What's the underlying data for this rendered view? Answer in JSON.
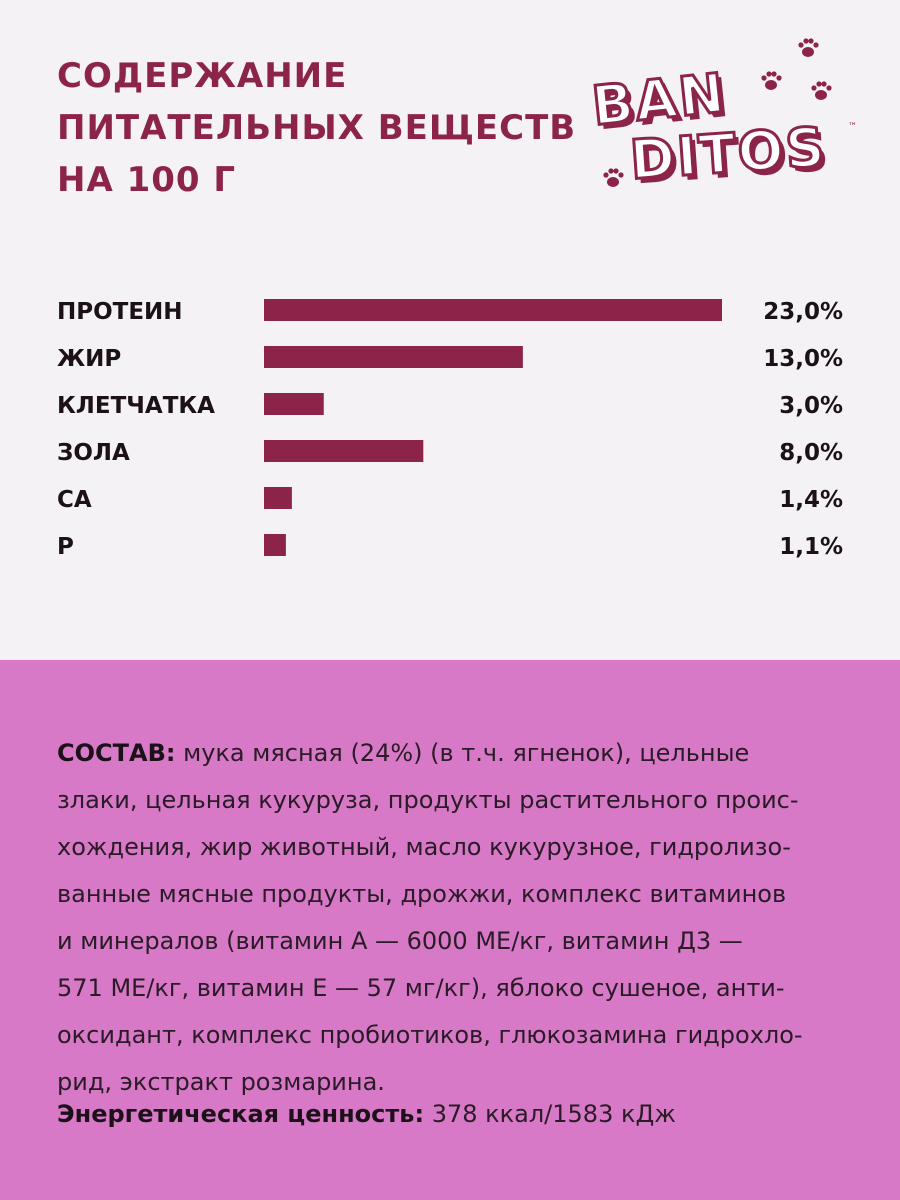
{
  "header": {
    "title_lines": [
      "СОДЕРЖАНИЕ",
      "ПИТАТЕЛЬНЫХ ВЕЩЕСТВ",
      "НА 100 Г"
    ]
  },
  "logo": {
    "line1": "BAN",
    "line2": "DITOS",
    "tm": "™",
    "paw_icon": "paw-icon"
  },
  "colors": {
    "accent": "#8c2449",
    "top_background": "#f4f2f5",
    "bottom_background": "#d779c6",
    "text_dark": "#1d1119"
  },
  "chart_data": {
    "type": "bar",
    "orientation": "horizontal",
    "categories": [
      "ПРОТЕИН",
      "ЖИР",
      "КЛЕТЧАТКА",
      "ЗОЛА",
      "CA",
      "P"
    ],
    "values": [
      23.0,
      13.0,
      3.0,
      8.0,
      1.4,
      1.1
    ],
    "value_labels": [
      "23,0%",
      "13,0%",
      "3,0%",
      "8,0%",
      "1,4%",
      "1,1%"
    ],
    "unit": "%",
    "xlim": [
      0,
      23.0
    ],
    "grid": false,
    "legend": "none"
  },
  "composition": {
    "label": "СОСТАВ:",
    "lines": [
      " мука мясная (24%) (в т.ч. ягненок), цельные",
      "злаки, цельная кукуруза, продукты растительного проис-",
      "хождения, жир животный, масло кукурузное, гидролизо-",
      "ванные мясные продукты, дрожжи, комплекс витаминов",
      "и минералов (витамин А — 6000 МЕ/кг, витамин Д3 —",
      "571 МЕ/кг, витамин Е — 57 мг/кг), яблоко сушеное, анти-",
      "оксидант, комплекс пробиотиков, глюкозамина гидрохло-",
      "рид, экстракт розмарина."
    ]
  },
  "energy": {
    "label": "Энергетическая ценность:",
    "value": " 378 ккал/1583 кДж"
  }
}
